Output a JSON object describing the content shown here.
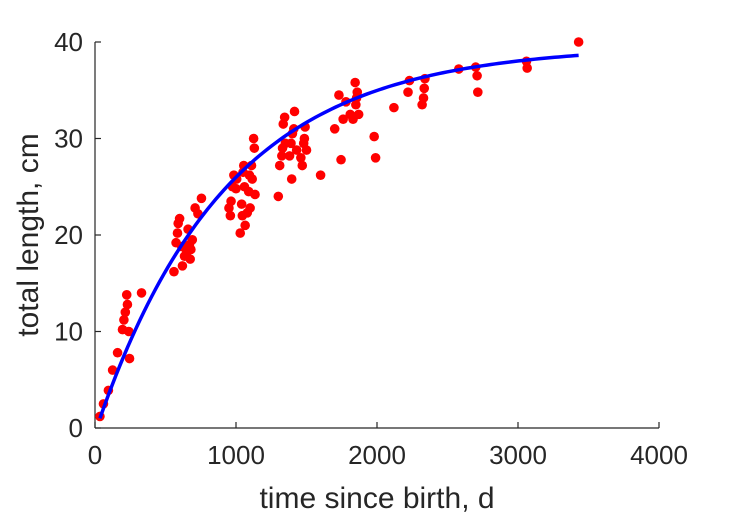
{
  "chart_data": {
    "type": "scatter",
    "title": "",
    "xlabel": "time since birth, d",
    "ylabel": "total length, cm",
    "xlim": [
      0,
      4000
    ],
    "ylim": [
      0,
      40
    ],
    "xticks": [
      0,
      1000,
      2000,
      3000,
      4000
    ],
    "yticks": [
      0,
      10,
      20,
      30,
      40
    ],
    "xtick_labels": [
      "0",
      "1000",
      "2000",
      "3000",
      "4000"
    ],
    "ytick_labels": [
      "0",
      "10",
      "20",
      "30",
      "40"
    ],
    "grid": false,
    "legend": "none",
    "colors": {
      "points": "#ff0000",
      "fit_line": "#0000ff",
      "axis": "#262626"
    },
    "series": [
      {
        "kind": "scatter",
        "points": [
          [
            35,
            1.2
          ],
          [
            60,
            2.5
          ],
          [
            95,
            3.9
          ],
          [
            125,
            6.0
          ],
          [
            160,
            7.8
          ],
          [
            195,
            10.2
          ],
          [
            205,
            11.2
          ],
          [
            215,
            12.0
          ],
          [
            225,
            13.8
          ],
          [
            230,
            12.8
          ],
          [
            240,
            10.0
          ],
          [
            245,
            7.2
          ],
          [
            330,
            14.0
          ],
          [
            560,
            16.2
          ],
          [
            575,
            19.2
          ],
          [
            585,
            20.2
          ],
          [
            590,
            21.2
          ],
          [
            600,
            21.7
          ],
          [
            615,
            18.8
          ],
          [
            620,
            16.8
          ],
          [
            635,
            17.8
          ],
          [
            650,
            18.2
          ],
          [
            660,
            20.6
          ],
          [
            670,
            19.0
          ],
          [
            675,
            17.5
          ],
          [
            680,
            18.5
          ],
          [
            690,
            19.5
          ],
          [
            710,
            22.8
          ],
          [
            730,
            22.2
          ],
          [
            755,
            23.8
          ],
          [
            950,
            22.8
          ],
          [
            960,
            22.0
          ],
          [
            965,
            23.5
          ],
          [
            975,
            25.0
          ],
          [
            985,
            26.2
          ],
          [
            1000,
            24.8
          ],
          [
            1005,
            25.8
          ],
          [
            1030,
            20.2
          ],
          [
            1040,
            23.2
          ],
          [
            1045,
            22.0
          ],
          [
            1050,
            26.5
          ],
          [
            1055,
            27.2
          ],
          [
            1060,
            25.0
          ],
          [
            1065,
            21.0
          ],
          [
            1080,
            22.3
          ],
          [
            1090,
            24.5
          ],
          [
            1095,
            26.2
          ],
          [
            1100,
            22.8
          ],
          [
            1110,
            27.2
          ],
          [
            1115,
            25.8
          ],
          [
            1125,
            30.0
          ],
          [
            1130,
            29.0
          ],
          [
            1135,
            24.2
          ],
          [
            1300,
            24.0
          ],
          [
            1310,
            27.2
          ],
          [
            1325,
            28.2
          ],
          [
            1330,
            29.0
          ],
          [
            1335,
            31.5
          ],
          [
            1345,
            32.2
          ],
          [
            1350,
            29.5
          ],
          [
            1380,
            28.2
          ],
          [
            1390,
            29.5
          ],
          [
            1395,
            25.8
          ],
          [
            1400,
            30.5
          ],
          [
            1410,
            31.0
          ],
          [
            1415,
            32.8
          ],
          [
            1430,
            28.8
          ],
          [
            1460,
            28.0
          ],
          [
            1470,
            27.2
          ],
          [
            1480,
            29.5
          ],
          [
            1485,
            30.0
          ],
          [
            1490,
            31.2
          ],
          [
            1500,
            28.8
          ],
          [
            1600,
            26.2
          ],
          [
            1700,
            31.0
          ],
          [
            1730,
            34.5
          ],
          [
            1745,
            27.8
          ],
          [
            1760,
            32.0
          ],
          [
            1780,
            33.8
          ],
          [
            1810,
            32.5
          ],
          [
            1830,
            32.0
          ],
          [
            1845,
            35.8
          ],
          [
            1850,
            33.5
          ],
          [
            1855,
            34.2
          ],
          [
            1860,
            34.8
          ],
          [
            1870,
            32.5
          ],
          [
            1980,
            30.2
          ],
          [
            1990,
            28.0
          ],
          [
            2120,
            33.2
          ],
          [
            2220,
            34.8
          ],
          [
            2230,
            36.0
          ],
          [
            2320,
            33.5
          ],
          [
            2330,
            34.2
          ],
          [
            2335,
            35.2
          ],
          [
            2340,
            36.2
          ],
          [
            2580,
            37.2
          ],
          [
            2700,
            37.4
          ],
          [
            2710,
            36.5
          ],
          [
            2715,
            34.8
          ],
          [
            3060,
            38.0
          ],
          [
            3065,
            37.3
          ],
          [
            3430,
            40.0
          ]
        ]
      },
      {
        "kind": "fit-line",
        "model": "von Bertalanffy",
        "L_inf": 39.6,
        "L_0": 1.0,
        "k_per_day": 0.00108,
        "x_range": [
          35,
          3430
        ]
      }
    ]
  }
}
